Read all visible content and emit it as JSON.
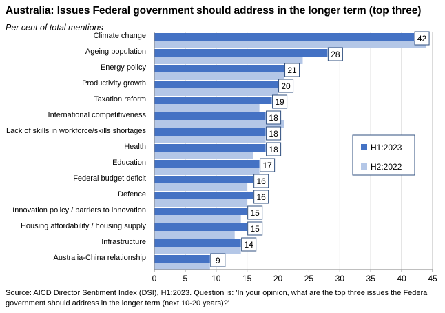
{
  "chart_data": {
    "type": "bar",
    "orientation": "horizontal",
    "title": "Australia:  Issues Federal government should address in the longer term (top three)",
    "subtitle": "Per cent of total mentions",
    "categories": [
      "Climate change",
      "Ageing population",
      "Energy policy",
      "Productivity growth",
      "Taxation reform",
      "International competitiveness",
      "Lack of skills in workforce/skills shortages",
      "Health",
      "Education",
      "Federal budget deficit",
      "Defence",
      "Innovation policy / barriers to innovation",
      "Housing affordability / housing supply",
      "Infrastructure",
      "Australia-China relationship"
    ],
    "series": [
      {
        "name": "H1:2023",
        "color": "#4472c4",
        "values": [
          42,
          28,
          21,
          20,
          19,
          18,
          18,
          18,
          17,
          16,
          16,
          15,
          15,
          14,
          9
        ]
      },
      {
        "name": "H2:2022",
        "color": "#b4c7e7",
        "values": [
          44,
          24,
          21,
          20,
          17,
          21,
          18,
          16,
          17,
          15,
          15,
          14,
          13,
          14,
          9
        ]
      }
    ],
    "data_labels": [
      "42",
      "28",
      "21",
      "20",
      "19",
      "18",
      "18",
      "18",
      "17",
      "16",
      "16",
      "15",
      "15",
      "14",
      "9"
    ],
    "xlim": [
      0,
      45
    ],
    "xticks": [
      "0",
      "5",
      "10",
      "15",
      "20",
      "25",
      "30",
      "35",
      "40",
      "45"
    ],
    "grid": "vertical",
    "legend_position": "right"
  },
  "source_text": "Source: AICD Director Sentiment Index (DSI), H1:2023.  Question is: 'In your opinion, what are the top three issues the Federal government should address in the longer term (next 10-20 years)?'"
}
